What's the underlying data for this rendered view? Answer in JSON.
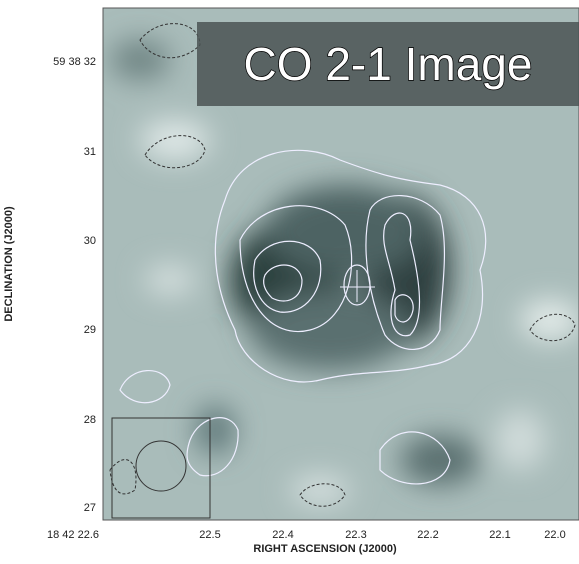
{
  "header": {
    "title": "CO 2-1 Image"
  },
  "axes": {
    "x": {
      "label": "RIGHT ASCENSION (J2000)",
      "ticks": [
        "18 42 22.6",
        "22.5",
        "22.4",
        "22.3",
        "22.2",
        "22.1",
        "22.0"
      ]
    },
    "y": {
      "label": "DECLINATION (J2000)",
      "ticks": [
        "59 38 32",
        "31",
        "30",
        "29",
        "28",
        "27"
      ]
    }
  }
}
